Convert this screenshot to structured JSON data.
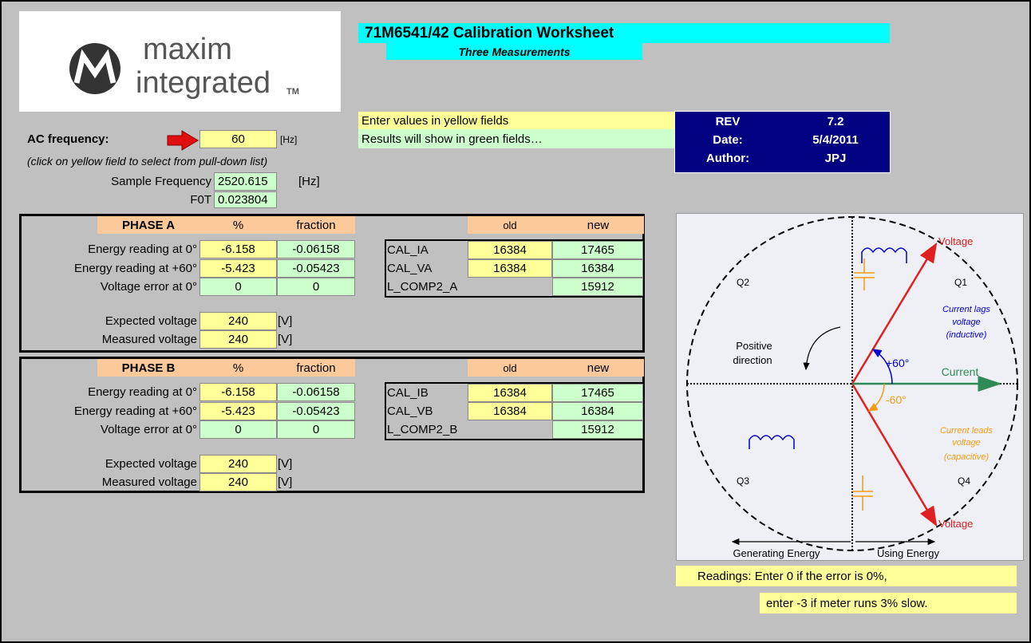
{
  "header": {
    "logo_line1": "maxim",
    "logo_line2": "integrated",
    "logo_tm": "TM",
    "title": "71M6541/42 Calibration Worksheet",
    "subtitle": "Three Measurements"
  },
  "notes": {
    "yellow": "Enter values in yellow fields",
    "green": "Results will show in green fields…"
  },
  "rev": {
    "rows": [
      [
        "REV",
        "7.2"
      ],
      [
        "Date:",
        "5/4/2011"
      ],
      [
        "Author:",
        "JPJ"
      ]
    ]
  },
  "settings": {
    "ac_label": "AC frequency:",
    "ac_value": "60",
    "ac_unit": "[Hz]",
    "hint": "(click on yellow field to select from pull-down list)",
    "sample_label": "Sample Frequency",
    "sample_value": "2520.615",
    "sample_unit": "[Hz]",
    "f0t_label": "F0T",
    "f0t_value": "0.023804"
  },
  "columns": [
    "%",
    "fraction",
    "old",
    "new"
  ],
  "phases": [
    {
      "name": "PHASE A",
      "rows": [
        [
          "Energy reading at 0°",
          "-6.158",
          "-0.06158"
        ],
        [
          "Energy reading at +60°",
          "-5.423",
          "-0.05423"
        ],
        [
          "Voltage error at 0°",
          "0",
          "0"
        ]
      ],
      "cal": [
        {
          "name": "CAL_IA",
          "old": "16384",
          "new": "17465"
        },
        {
          "name": "CAL_VA",
          "old": "16384",
          "new": "16384"
        },
        {
          "name": "L_COMP2_A",
          "new": "15912"
        }
      ],
      "expected_label": "Expected voltage",
      "expected": "240",
      "measured_label": "Measured voltage",
      "measured": "240",
      "unit": "[V]"
    },
    {
      "name": "PHASE B",
      "rows": [
        [
          "Energy reading at 0°",
          "-6.158",
          "-0.06158"
        ],
        [
          "Energy reading at +60°",
          "-5.423",
          "-0.05423"
        ],
        [
          "Voltage error at 0°",
          "0",
          "0"
        ]
      ],
      "cal": [
        {
          "name": "CAL_IB",
          "old": "16384",
          "new": "17465"
        },
        {
          "name": "CAL_VB",
          "old": "16384",
          "new": "16384"
        },
        {
          "name": "L_COMP2_B",
          "new": "15912"
        }
      ],
      "expected_label": "Expected voltage",
      "expected": "240",
      "measured_label": "Measured voltage",
      "measured": "240",
      "unit": "[V]"
    }
  ],
  "diagram": {
    "voltage": "Voltage",
    "q1": "Q1",
    "q2": "Q2",
    "q3": "Q3",
    "q4": "Q4",
    "lags": [
      "Current lags",
      "voltage",
      "(inductive)"
    ],
    "positive": [
      "Positive",
      "direction"
    ],
    "plus60": "+60°",
    "current": "Current",
    "minus60": "-60°",
    "leads": [
      "Current leads",
      "voltage",
      "(capacitive)"
    ],
    "generating": "Generating Energy",
    "using": "Using Energy"
  },
  "readings": [
    "Readings:  Enter 0 if the error is 0%,",
    "enter -3 if meter runs 3% slow."
  ]
}
